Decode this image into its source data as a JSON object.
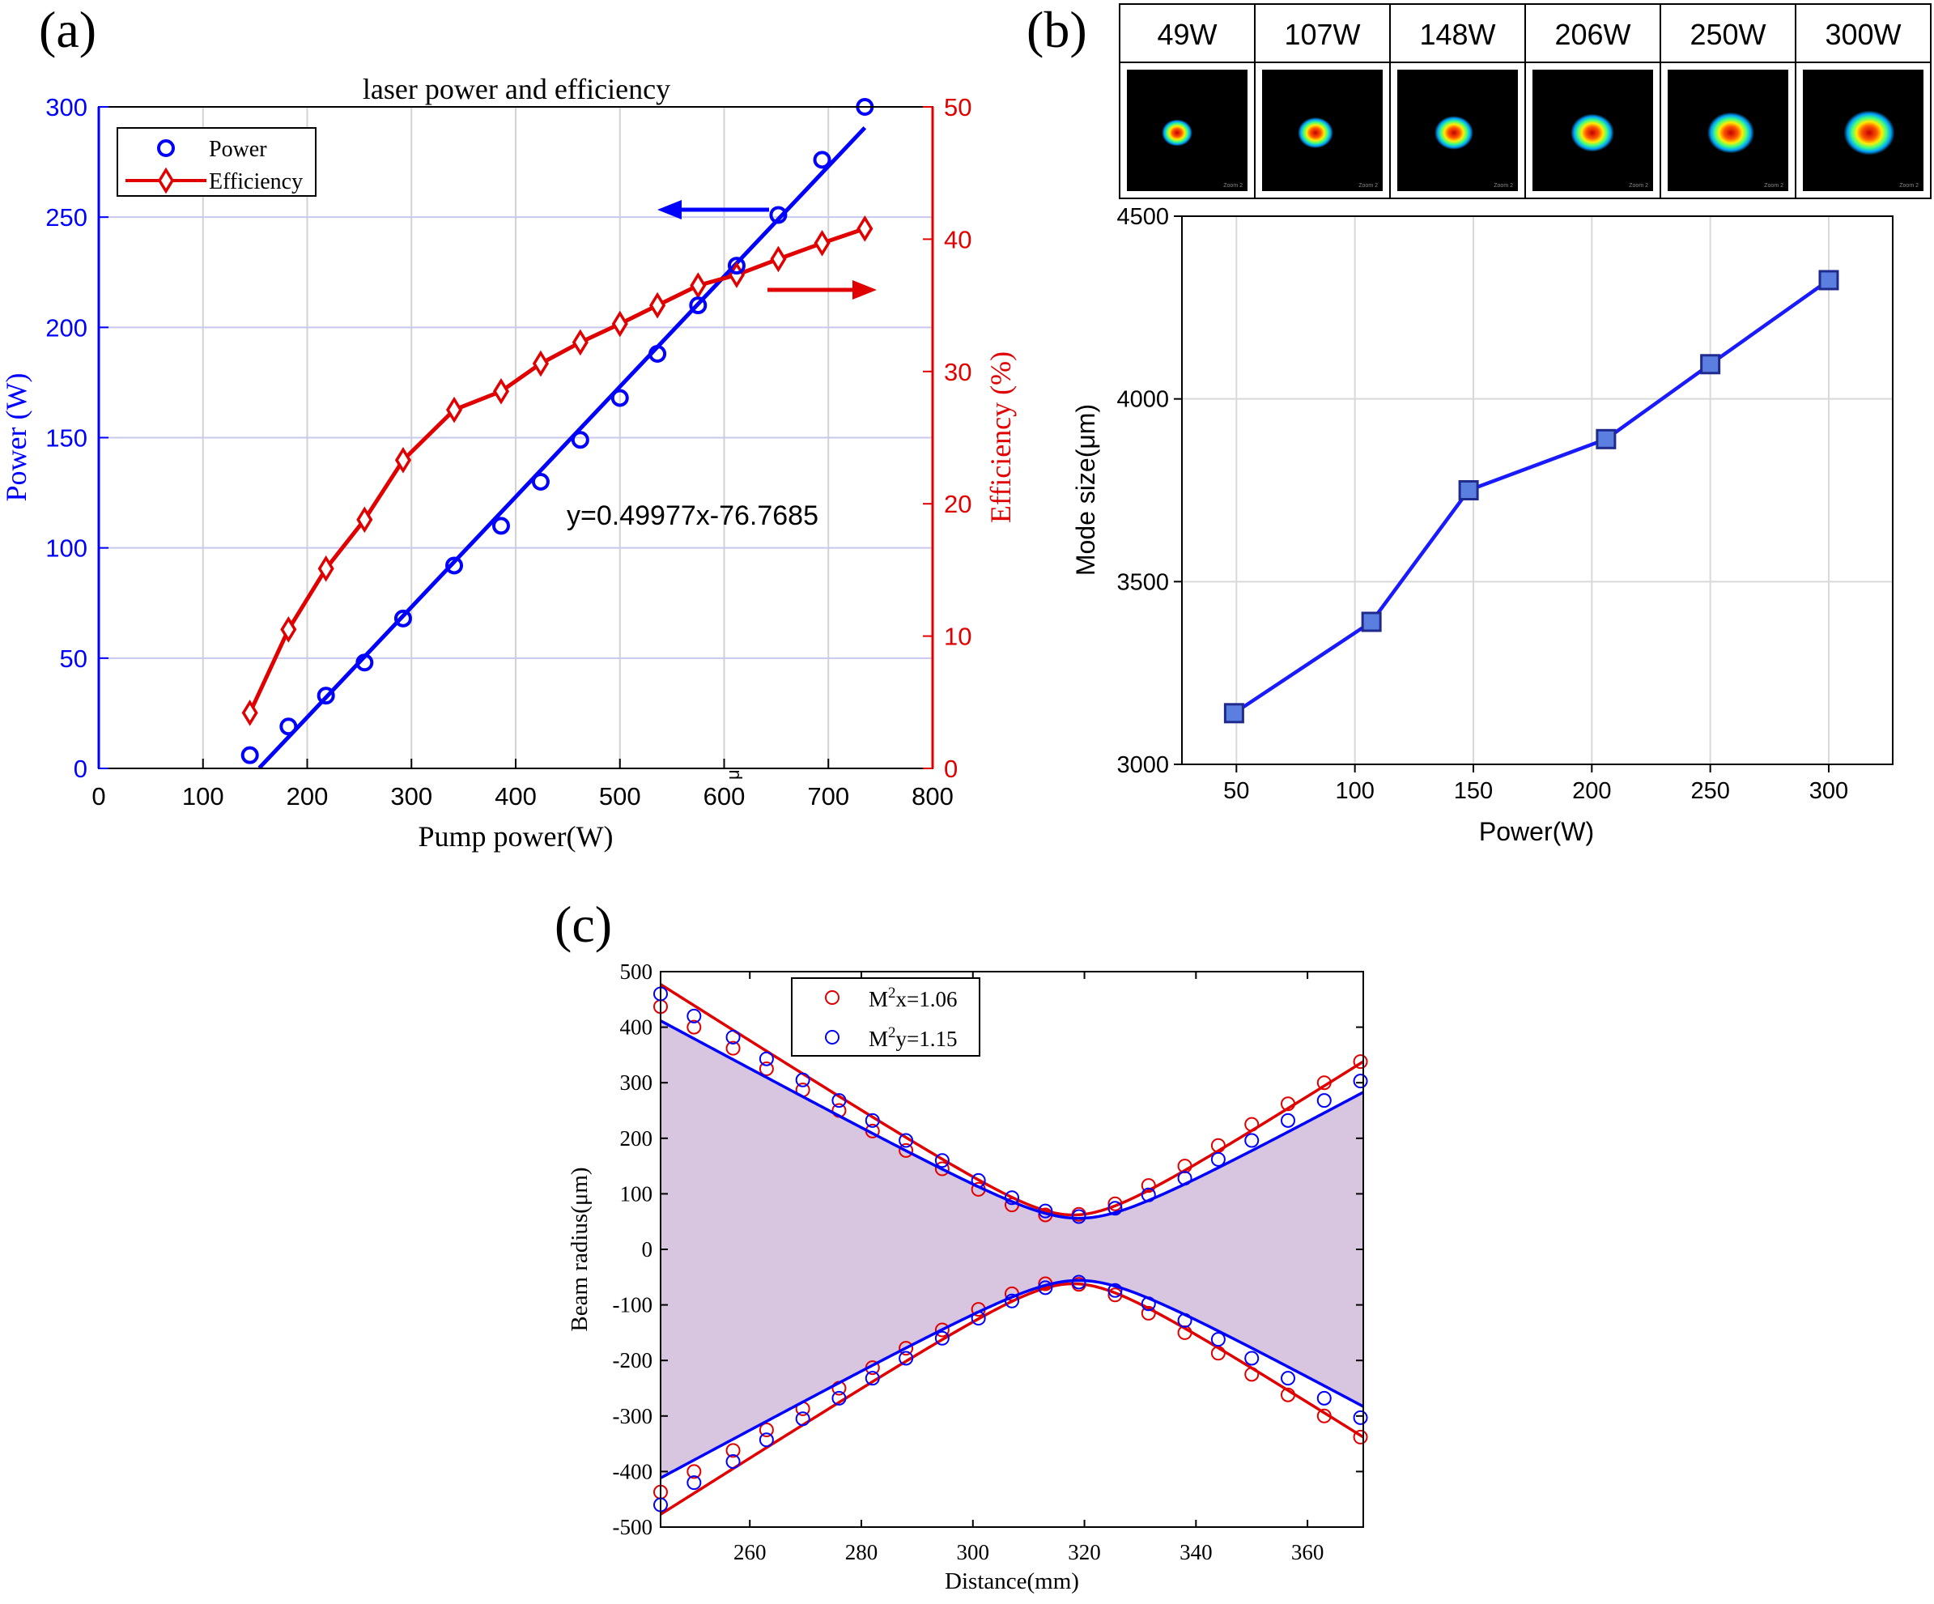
{
  "panels": {
    "a": "(a)",
    "b": "(b)",
    "c": "(c)"
  },
  "chart_data": [
    {
      "id": "a",
      "type": "line",
      "title": "laser power and efficiency",
      "xlabel": "Pump power(W)",
      "ylabel_left": "Power (W)",
      "ylabel_right": "Efficiency (%)",
      "xlim": [
        0,
        800
      ],
      "ylim_left": [
        0,
        300
      ],
      "ylim_right": [
        0,
        50
      ],
      "xticks": [
        0,
        100,
        200,
        300,
        400,
        500,
        600,
        700,
        800
      ],
      "yticks_left": [
        0,
        50,
        100,
        150,
        200,
        250,
        300
      ],
      "yticks_right": [
        0,
        10,
        20,
        30,
        40,
        50
      ],
      "grid": true,
      "legend": "top-left",
      "annotation": "y=0.49977x-76.7685",
      "stray_label": "μ",
      "colors": {
        "power": "#0000ff",
        "efficiency": "#e00000",
        "grid": "#c8c8ee"
      },
      "series": [
        {
          "name": "Power",
          "marker": "circle",
          "axis": "left",
          "x": [
            145,
            182,
            218,
            255,
            292,
            341,
            386,
            424,
            462,
            500,
            536,
            575,
            612,
            652,
            694,
            735
          ],
          "y": [
            6,
            19,
            33,
            48,
            68,
            92,
            110,
            130,
            149,
            168,
            188,
            210,
            228,
            251,
            276,
            300
          ]
        },
        {
          "name": "Efficiency",
          "marker": "diamond",
          "axis": "right",
          "x": [
            145,
            182,
            218,
            255,
            292,
            341,
            386,
            424,
            462,
            500,
            536,
            575,
            612,
            652,
            694,
            735
          ],
          "y": [
            4.2,
            10.5,
            15.1,
            18.8,
            23.3,
            27.1,
            28.5,
            30.6,
            32.2,
            33.6,
            35.0,
            36.5,
            37.3,
            38.5,
            39.7,
            40.8
          ]
        }
      ],
      "fit": {
        "slope": 0.49977,
        "intercept": -76.7685,
        "x_range": [
          154,
          735
        ]
      }
    },
    {
      "id": "b",
      "type": "line",
      "title": "",
      "xlabel": "Power(W)",
      "ylabel": "Mode size(μm)",
      "xlim": [
        27,
        327
      ],
      "ylim": [
        3000,
        4500
      ],
      "xticks": [
        50,
        100,
        150,
        200,
        250,
        300
      ],
      "yticks": [
        3000,
        3500,
        4000,
        4500
      ],
      "grid": true,
      "colors": {
        "line": "#1a1aff",
        "marker_fill": "#5b7fe0"
      },
      "series": [
        {
          "name": "",
          "marker": "square",
          "x": [
            49,
            107,
            148,
            206,
            250,
            300
          ],
          "y": [
            3140,
            3390,
            3750,
            3890,
            4095,
            4325
          ]
        }
      ],
      "beam_profiles": [
        "49W",
        "107W",
        "148W",
        "206W",
        "250W",
        "300W"
      ],
      "beam_profile_note": "Zoom 2"
    },
    {
      "id": "c",
      "type": "line",
      "title": "",
      "xlabel": "Distance(mm)",
      "ylabel": "Beam radius(μm)",
      "xlim": [
        244,
        370
      ],
      "ylim": [
        -500,
        500
      ],
      "xticks": [
        260,
        280,
        300,
        320,
        340,
        360
      ],
      "yticks": [
        -500,
        -400,
        -300,
        -200,
        -100,
        0,
        100,
        200,
        300,
        400,
        500
      ],
      "grid": false,
      "legend": "top-center",
      "fill_color": "#d8c5e0",
      "series": [
        {
          "name_prefix": "M",
          "name_sup": "2",
          "name_suffix": "x=1.06",
          "color": "#e00000",
          "waist_um": 62,
          "waist_pos_mm": 318,
          "zr_mm": 9.7,
          "x": [
            244,
            250,
            257,
            263,
            269.5,
            276,
            282,
            288,
            294.5,
            301,
            307,
            313,
            319,
            325.5,
            331.5,
            338,
            344,
            350,
            356.5,
            363,
            369.5
          ],
          "y": [
            437,
            400,
            362,
            325,
            287,
            250,
            213,
            178,
            145,
            108,
            80,
            62,
            63,
            82,
            115,
            150,
            187,
            225,
            262,
            300,
            338
          ]
        },
        {
          "name_prefix": "M",
          "name_sup": "2",
          "name_suffix": "y=1.15",
          "color": "#0000ff",
          "waist_um": 56,
          "waist_pos_mm": 319,
          "zr_mm": 10.3,
          "x": [
            244,
            250,
            257,
            263,
            269.5,
            276,
            282,
            288,
            294.5,
            301,
            307,
            313,
            319,
            325.5,
            331.5,
            338,
            344,
            350,
            356.5,
            363,
            369.5
          ],
          "y": [
            460,
            420,
            382,
            343,
            305,
            268,
            232,
            196,
            160,
            124,
            93,
            69,
            59,
            74,
            98,
            128,
            162,
            196,
            232,
            268,
            303
          ]
        }
      ]
    }
  ]
}
